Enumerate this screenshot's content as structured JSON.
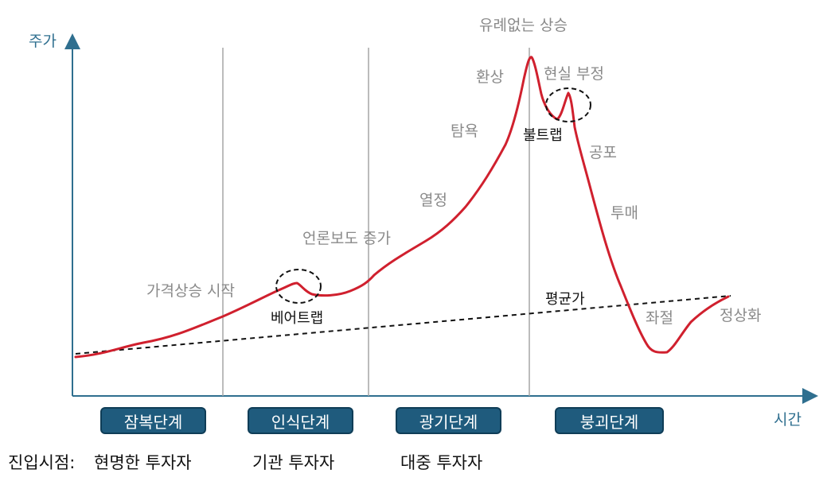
{
  "axes": {
    "y_label": "주가",
    "x_label": "시간"
  },
  "curve_color": "#d0202e",
  "annotations": {
    "unprecedented_rise": "유례없는 상승",
    "illusion": "환상",
    "denial": "현실 부정",
    "bull_trap": "불트랩",
    "greed": "탐욕",
    "fear": "공포",
    "enthusiasm": "열정",
    "panic_sell": "투매",
    "media": "언론보도 증가",
    "price_rise": "가격상승 시작",
    "bear_trap": "베어트랩",
    "mean": "평균가",
    "despair": "좌절",
    "normalization": "정상화"
  },
  "stages": [
    {
      "label": "잠복단계"
    },
    {
      "label": "인식단계"
    },
    {
      "label": "광기단계"
    },
    {
      "label": "붕괴단계"
    }
  ],
  "entry": {
    "prefix": "진입시점:",
    "investors": [
      "현명한 투자자",
      "기관 투자자",
      "대중 투자자"
    ]
  },
  "stage_box_color": "#1f5b7d"
}
